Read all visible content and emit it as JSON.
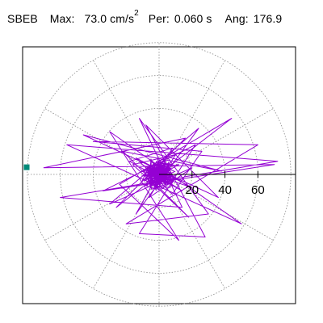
{
  "header": {
    "station": "SBEB",
    "max_label": "Max:",
    "max_value": "73.0",
    "max_unit": "cm/s",
    "max_unit_exp": "2",
    "per_label": "Per:",
    "per_value": "0.060",
    "per_unit": "s",
    "ang_label": "Ang:",
    "ang_value": "176.9"
  },
  "chart_data": {
    "type": "polar-trace",
    "title": "",
    "rings": [
      20,
      40,
      60
    ],
    "spokes_deg": [
      0,
      30,
      60,
      90,
      120,
      150,
      180,
      210,
      240,
      270,
      300,
      330
    ],
    "tick_labels": [
      "20",
      "40",
      "60"
    ],
    "max_radius": 80,
    "peak_angle_deg": 176.9,
    "peak_value": 73.0,
    "trace_color": "#9400d3",
    "marker_color": "#008b7a",
    "grid": true,
    "trace_points": [
      [
        0,
        0
      ],
      [
        4,
        3
      ],
      [
        -6,
        -4
      ],
      [
        12,
        6
      ],
      [
        -10,
        2
      ],
      [
        20,
        -8
      ],
      [
        -14,
        10
      ],
      [
        8,
        -12
      ],
      [
        26,
        14
      ],
      [
        -40,
        20
      ],
      [
        60,
        18
      ],
      [
        -20,
        -30
      ],
      [
        30,
        -24
      ],
      [
        -12,
        34
      ],
      [
        14,
        -20
      ],
      [
        -60,
        -14
      ],
      [
        72,
        8
      ],
      [
        -56,
        18
      ],
      [
        50,
        -30
      ],
      [
        -30,
        26
      ],
      [
        12,
        -40
      ],
      [
        -24,
        -6
      ],
      [
        44,
        34
      ],
      [
        -26,
        -20
      ],
      [
        16,
        22
      ],
      [
        -70,
        4
      ],
      [
        70,
        6
      ],
      [
        -34,
        -10
      ],
      [
        22,
        18
      ],
      [
        -12,
        -36
      ],
      [
        28,
        -38
      ],
      [
        -8,
        30
      ],
      [
        36,
        -14
      ],
      [
        -46,
        24
      ],
      [
        38,
        2
      ],
      [
        -22,
        14
      ],
      [
        18,
        -26
      ],
      [
        -16,
        6
      ],
      [
        10,
        12
      ],
      [
        -6,
        -14
      ],
      [
        20,
        4
      ],
      [
        -30,
        -18
      ],
      [
        24,
        28
      ],
      [
        -14,
        -24
      ],
      [
        8,
        16
      ],
      [
        -18,
        8
      ],
      [
        14,
        -10
      ],
      [
        -8,
        4
      ],
      [
        6,
        -6
      ],
      [
        -4,
        8
      ],
      [
        2,
        -2
      ],
      [
        -3,
        3
      ],
      [
        5,
        1
      ],
      [
        -2,
        -3
      ],
      [
        0,
        0
      ],
      [
        3,
        -1
      ],
      [
        -3,
        0
      ],
      [
        1,
        2
      ],
      [
        0,
        0
      ]
    ]
  }
}
